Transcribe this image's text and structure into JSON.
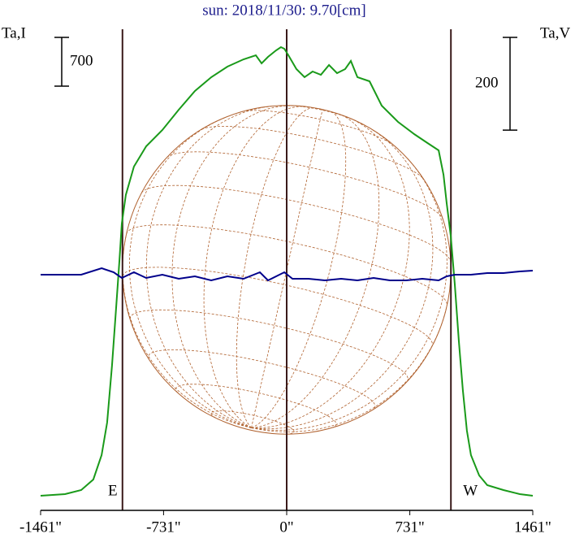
{
  "chart_data": {
    "type": "line",
    "title": "sun: 2018/11/30: 9.70[cm]",
    "y_label": "Ta,I",
    "y2_label": "Ta,V",
    "i_scale": 700,
    "v_scale": 200,
    "xlim": [
      -1461,
      1461
    ],
    "xticks": [
      {
        "value": -1461,
        "label": "-1461\""
      },
      {
        "value": -731,
        "label": "-731\""
      },
      {
        "value": 0,
        "label": "0\""
      },
      {
        "value": 731,
        "label": "731\""
      },
      {
        "value": 1461,
        "label": "1461\""
      }
    ],
    "ylim": [
      0,
      7000
    ],
    "y2lim": [
      -526,
      526
    ],
    "limbs": [
      {
        "label": "E",
        "x": -975
      },
      {
        "label": "W",
        "x": 975
      }
    ],
    "series": [
      {
        "name": "Ta,I",
        "color": "#1a9a1a",
        "x": [
          -1461,
          -1316,
          -1220,
          -1148,
          -1099,
          -1066,
          -1037,
          -1013,
          -993,
          -979,
          -955,
          -907,
          -834,
          -738,
          -641,
          -545,
          -448,
          -352,
          -256,
          -183,
          -149,
          -111,
          -63,
          -34,
          -14,
          10,
          58,
          106,
          154,
          203,
          251,
          299,
          347,
          381,
          420,
          492,
          564,
          661,
          757,
          829,
          902,
          931,
          950,
          974,
          998,
          1022,
          1046,
          1070,
          1094,
          1143,
          1191,
          1287,
          1384,
          1461
        ],
        "values": [
          210,
          233,
          292,
          443,
          793,
          1260,
          2077,
          2893,
          3593,
          4118,
          4527,
          4935,
          5227,
          5460,
          5752,
          6020,
          6218,
          6370,
          6475,
          6533,
          6417,
          6510,
          6603,
          6650,
          6627,
          6533,
          6335,
          6218,
          6300,
          6253,
          6393,
          6277,
          6335,
          6452,
          6218,
          6160,
          5810,
          5577,
          5402,
          5285,
          5168,
          4818,
          4410,
          3943,
          3243,
          2427,
          1727,
          1143,
          793,
          502,
          362,
          292,
          233,
          210
        ]
      },
      {
        "name": "Ta,V",
        "color": "#00008b",
        "axis": "y2",
        "x": [
          -1461,
          -1220,
          -1099,
          -1027,
          -979,
          -907,
          -834,
          -738,
          -641,
          -545,
          -448,
          -352,
          -256,
          -159,
          -111,
          -14,
          34,
          130,
          227,
          323,
          420,
          516,
          613,
          709,
          805,
          902,
          950,
          998,
          1094,
          1191,
          1287,
          1384,
          1461
        ],
        "values": [
          -17.5,
          -17.5,
          -3.5,
          -12.3,
          -24.6,
          -12.3,
          -24.6,
          -17.5,
          -26.3,
          -21,
          -29.8,
          -21,
          -26.3,
          -12.3,
          -29.8,
          -12.3,
          -26.3,
          -26.3,
          -29.8,
          -26.3,
          -29.8,
          -24.6,
          -29.8,
          -29.8,
          -26.3,
          -29.8,
          -21,
          -17.5,
          -17.5,
          -14,
          -14,
          -10.5,
          -8.8
        ]
      }
    ]
  }
}
